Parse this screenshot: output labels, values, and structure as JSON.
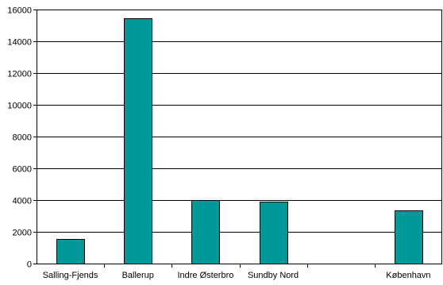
{
  "chart_data": {
    "type": "bar",
    "categories": [
      "Salling-Fjends",
      "Ballerup",
      "Indre Østerbro",
      "Sundby Nord",
      "",
      "København"
    ],
    "values": [
      1550,
      15450,
      3980,
      3920,
      0,
      3350
    ],
    "title": "",
    "xlabel": "",
    "ylabel": "",
    "ylim": [
      0,
      16000
    ],
    "yticks": [
      "0",
      "2000",
      "4000",
      "6000",
      "8000",
      "10000",
      "12000",
      "14000",
      "16000"
    ],
    "grid": true,
    "legend": "none",
    "colors": {
      "bar": "#009999",
      "grid": "#000000",
      "axis": "#000000"
    }
  }
}
